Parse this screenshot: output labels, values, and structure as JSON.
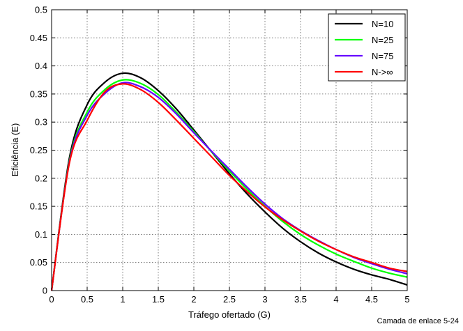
{
  "footer_text": "Camada de enlace 5-24",
  "chart_data": {
    "type": "line",
    "xlabel": "Tráfego ofertado (G)",
    "ylabel": "Eficiência (E)",
    "xlim": [
      0,
      5
    ],
    "ylim": [
      0,
      0.5
    ],
    "x_ticks": [
      0,
      0.5,
      1,
      1.5,
      2,
      2.5,
      3,
      3.5,
      4,
      4.5,
      5
    ],
    "y_ticks": [
      0,
      0.05,
      0.1,
      0.15,
      0.2,
      0.25,
      0.3,
      0.35,
      0.4,
      0.45,
      0.5
    ],
    "x_tick_labels": [
      "0",
      "0.5",
      "1",
      "1.5",
      "2",
      "2.5",
      "3",
      "3.5",
      "4",
      "4.5",
      "5"
    ],
    "y_tick_labels": [
      "0",
      "0.05",
      "0.1",
      "0.15",
      "0.2",
      "0.25",
      "0.3",
      "0.35",
      "0.4",
      "0.45",
      "0.5"
    ],
    "grid": true,
    "grid_style": "dotted",
    "legend_position": "top-right",
    "x": [
      0,
      0.25,
      0.5,
      0.75,
      1,
      1.25,
      1.5,
      1.75,
      2,
      2.25,
      2.5,
      2.75,
      3,
      3.25,
      3.5,
      3.75,
      4,
      4.25,
      4.5,
      4.75,
      5
    ],
    "series": [
      {
        "name": "N=10",
        "color": "#000000",
        "values": [
          0,
          0.236,
          0.331,
          0.371,
          0.387,
          0.379,
          0.356,
          0.324,
          0.286,
          0.247,
          0.208,
          0.172,
          0.14,
          0.111,
          0.087,
          0.067,
          0.051,
          0.038,
          0.028,
          0.02,
          0.01
        ]
      },
      {
        "name": "N=25",
        "color": "#00ff00",
        "values": [
          0,
          0.231,
          0.318,
          0.358,
          0.375,
          0.369,
          0.349,
          0.318,
          0.283,
          0.247,
          0.213,
          0.18,
          0.15,
          0.123,
          0.1,
          0.081,
          0.065,
          0.052,
          0.04,
          0.031,
          0.024
        ]
      },
      {
        "name": "N=75",
        "color": "#6600ff",
        "values": [
          0,
          0.229,
          0.312,
          0.351,
          0.37,
          0.363,
          0.344,
          0.315,
          0.281,
          0.248,
          0.216,
          0.184,
          0.154,
          0.128,
          0.107,
          0.089,
          0.073,
          0.059,
          0.048,
          0.038,
          0.03
        ]
      },
      {
        "name": "N->∞",
        "color": "#ff0000",
        "values": [
          0,
          0.227,
          0.303,
          0.354,
          0.368,
          0.358,
          0.335,
          0.304,
          0.271,
          0.238,
          0.205,
          0.176,
          0.149,
          0.126,
          0.106,
          0.088,
          0.073,
          0.06,
          0.05,
          0.04,
          0.034
        ]
      }
    ]
  }
}
